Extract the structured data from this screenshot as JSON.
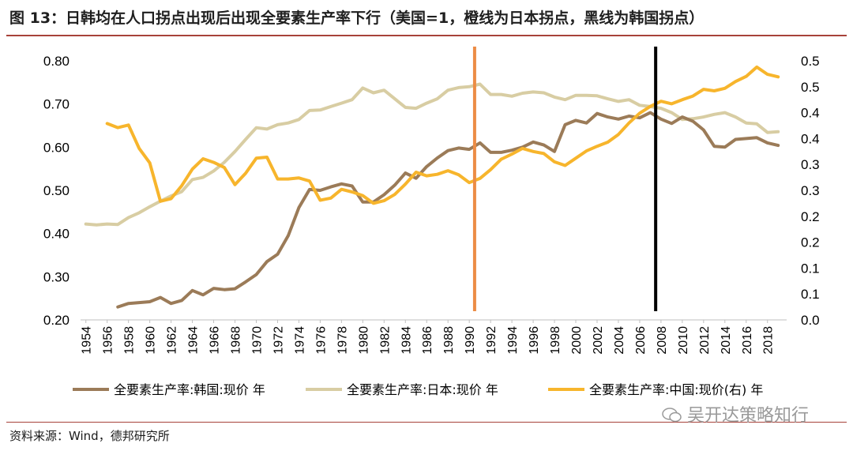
{
  "title": "图 13：日韩均在人口拐点出现后出现全要素生产率下行（美国=1，橙线为日本拐点，黑线为韩国拐点）",
  "source": "资料来源：Wind，德邦研究所",
  "watermark": "吴开达策略知行",
  "colors": {
    "korea": "#9b7b58",
    "japan": "#d8cda3",
    "china": "#f7b52c",
    "japan_turn": "#ec8c45",
    "korea_turn": "#000000",
    "rule": "#a7423a"
  },
  "chart_data": {
    "type": "line",
    "title": "日韩均在人口拐点出现后出现全要素生产率下行（美国=1，橙线为日本拐点，黑线为韩国拐点）",
    "x_ticks": [
      "1954",
      "1956",
      "1958",
      "1960",
      "1962",
      "1964",
      "1966",
      "1968",
      "1970",
      "1972",
      "1974",
      "1976",
      "1978",
      "1980",
      "1982",
      "1984",
      "1986",
      "1988",
      "1990",
      "1992",
      "1994",
      "1996",
      "1998",
      "2000",
      "2002",
      "2004",
      "2006",
      "2008",
      "2010",
      "2012",
      "2014",
      "2016",
      "2018"
    ],
    "y_left": {
      "min": 0.2,
      "max": 0.8,
      "ticks": [
        "0.20",
        "0.30",
        "0.40",
        "0.50",
        "0.60",
        "0.70",
        "0.80"
      ]
    },
    "y_right": {
      "min": 0.0,
      "max": 0.5,
      "ticks": [
        "0.0",
        "0.1",
        "0.1",
        "0.2",
        "0.2",
        "0.3",
        "0.3",
        "0.4",
        "0.4",
        "0.5",
        "0.5"
      ]
    },
    "vertical_lines": [
      {
        "name": "日本拐点",
        "year": 1990.5
      },
      {
        "name": "韩国拐点",
        "year": 2007.5
      }
    ],
    "series": [
      {
        "name": "全要素生产率:韩国:现价 年",
        "axis": "left",
        "x": [
          1957,
          1958,
          1959,
          1960,
          1961,
          1962,
          1963,
          1964,
          1965,
          1966,
          1967,
          1968,
          1969,
          1970,
          1971,
          1972,
          1973,
          1974,
          1975,
          1976,
          1977,
          1978,
          1979,
          1980,
          1981,
          1982,
          1983,
          1984,
          1985,
          1986,
          1987,
          1988,
          1989,
          1990,
          1991,
          1992,
          1993,
          1994,
          1995,
          1996,
          1997,
          1998,
          1999,
          2000,
          2001,
          2002,
          2003,
          2004,
          2005,
          2006,
          2007,
          2008,
          2009,
          2010,
          2011,
          2012,
          2013,
          2014,
          2015,
          2016,
          2017,
          2018,
          2019
        ],
        "values": [
          0.23,
          0.238,
          0.24,
          0.242,
          0.252,
          0.238,
          0.245,
          0.268,
          0.258,
          0.273,
          0.27,
          0.272,
          0.288,
          0.305,
          0.335,
          0.352,
          0.395,
          0.46,
          0.502,
          0.5,
          0.508,
          0.515,
          0.51,
          0.473,
          0.473,
          0.49,
          0.512,
          0.54,
          0.528,
          0.555,
          0.575,
          0.592,
          0.598,
          0.595,
          0.61,
          0.588,
          0.588,
          0.593,
          0.6,
          0.612,
          0.605,
          0.59,
          0.652,
          0.662,
          0.656,
          0.678,
          0.67,
          0.665,
          0.672,
          0.668,
          0.68,
          0.665,
          0.655,
          0.67,
          0.66,
          0.64,
          0.602,
          0.6,
          0.618,
          0.62,
          0.622,
          0.61,
          0.604
        ]
      },
      {
        "name": "全要素生产率:日本:现价 年",
        "axis": "left",
        "x": [
          1954,
          1955,
          1956,
          1957,
          1958,
          1959,
          1960,
          1961,
          1962,
          1963,
          1964,
          1965,
          1966,
          1967,
          1968,
          1969,
          1970,
          1971,
          1972,
          1973,
          1974,
          1975,
          1976,
          1977,
          1978,
          1979,
          1980,
          1981,
          1982,
          1983,
          1984,
          1985,
          1986,
          1987,
          1988,
          1989,
          1990,
          1991,
          1992,
          1993,
          1994,
          1995,
          1996,
          1997,
          1998,
          1999,
          2000,
          2001,
          2002,
          2003,
          2004,
          2005,
          2006,
          2007,
          2008,
          2009,
          2010,
          2011,
          2012,
          2013,
          2014,
          2015,
          2016,
          2017,
          2018,
          2019
        ],
        "values": [
          0.422,
          0.42,
          0.422,
          0.421,
          0.437,
          0.448,
          0.462,
          0.475,
          0.487,
          0.497,
          0.525,
          0.53,
          0.545,
          0.565,
          0.59,
          0.618,
          0.645,
          0.642,
          0.652,
          0.656,
          0.664,
          0.685,
          0.686,
          0.694,
          0.702,
          0.71,
          0.737,
          0.726,
          0.732,
          0.712,
          0.692,
          0.69,
          0.702,
          0.712,
          0.732,
          0.738,
          0.74,
          0.746,
          0.722,
          0.722,
          0.718,
          0.725,
          0.728,
          0.726,
          0.716,
          0.71,
          0.72,
          0.72,
          0.719,
          0.712,
          0.706,
          0.71,
          0.697,
          0.694,
          0.69,
          0.68,
          0.664,
          0.666,
          0.67,
          0.676,
          0.68,
          0.67,
          0.656,
          0.654,
          0.634,
          0.636
        ]
      },
      {
        "name": "全要素生产率:中国:现价(右) 年",
        "axis": "right",
        "x": [
          1956,
          1957,
          1958,
          1959,
          1960,
          1961,
          1962,
          1963,
          1964,
          1965,
          1966,
          1967,
          1968,
          1969,
          1970,
          1971,
          1972,
          1973,
          1974,
          1975,
          1976,
          1977,
          1978,
          1979,
          1980,
          1981,
          1982,
          1983,
          1984,
          1985,
          1986,
          1987,
          1988,
          1989,
          1990,
          1991,
          1992,
          1993,
          1994,
          1995,
          1996,
          1997,
          1998,
          1999,
          2000,
          2001,
          2002,
          2003,
          2004,
          2005,
          2006,
          2007,
          2008,
          2009,
          2010,
          2011,
          2012,
          2013,
          2014,
          2015,
          2016,
          2017,
          2018,
          2019
        ],
        "values": [
          0.379,
          0.371,
          0.376,
          0.331,
          0.303,
          0.229,
          0.234,
          0.259,
          0.291,
          0.311,
          0.304,
          0.294,
          0.261,
          0.283,
          0.312,
          0.314,
          0.272,
          0.272,
          0.274,
          0.268,
          0.231,
          0.235,
          0.252,
          0.247,
          0.24,
          0.225,
          0.23,
          0.242,
          0.262,
          0.285,
          0.278,
          0.281,
          0.288,
          0.28,
          0.265,
          0.273,
          0.29,
          0.31,
          0.32,
          0.331,
          0.325,
          0.321,
          0.305,
          0.298,
          0.312,
          0.326,
          0.335,
          0.343,
          0.358,
          0.38,
          0.399,
          0.412,
          0.422,
          0.417,
          0.425,
          0.432,
          0.445,
          0.442,
          0.447,
          0.46,
          0.47,
          0.488,
          0.474,
          0.469
        ]
      }
    ],
    "legend": [
      "全要素生产率:韩国:现价 年",
      "全要素生产率:日本:现价 年",
      "全要素生产率:中国:现价(右) 年"
    ],
    "legend_position": "bottom"
  }
}
